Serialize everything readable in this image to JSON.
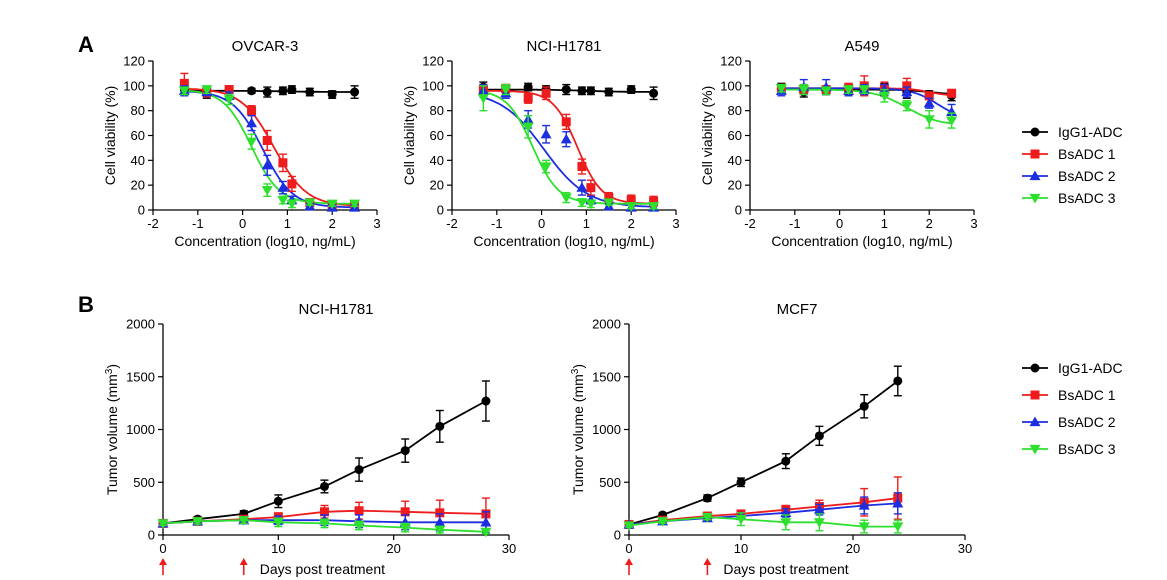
{
  "panels": [
    "A",
    "B"
  ],
  "colors": {
    "IgG1-ADC": "#000000",
    "BsADC 1": "#ee1c1c",
    "BsADC 2": "#1c2ee0",
    "BsADC 3": "#2ee02e",
    "arrow": "#ee1c1c"
  },
  "markers": {
    "IgG1-ADC": "circle",
    "BsADC 1": "square",
    "BsADC 2": "triangle-up",
    "BsADC 3": "triangle-down"
  },
  "legend_A": [
    "IgG1-ADC",
    "BsADC 1",
    "BsADC 2",
    "BsADC 3"
  ],
  "legend_B": [
    "IgG1-ADC",
    "BsADC 1",
    "BsADC 2",
    "BsADC 3"
  ],
  "b_xlabel": "Days post treatment",
  "chart_data": [
    {
      "type": "scatter",
      "title": "OVCAR-3",
      "xlabel": "Concentration (log10, ng/mL)",
      "ylabel": "Cell viability (%)",
      "xlim": [
        -2,
        3
      ],
      "ylim": [
        0,
        120
      ],
      "xticks": [
        -2,
        -1,
        0,
        1,
        2,
        3
      ],
      "yticks": [
        0,
        20,
        40,
        60,
        80,
        100,
        120
      ],
      "x": [
        -1.3,
        -0.8,
        -0.3,
        0.2,
        0.55,
        0.9,
        1.1,
        1.5,
        2,
        2.5
      ],
      "series": [
        {
          "name": "IgG1-ADC",
          "values": [
            97,
            94,
            97,
            96,
            95,
            96,
            97,
            95,
            93,
            95
          ],
          "errors": [
            4,
            4,
            2,
            2,
            4,
            3,
            3,
            3,
            3,
            5
          ]
        },
        {
          "name": "BsADC 1",
          "values": [
            102,
            95,
            97,
            80,
            56,
            38,
            21,
            6,
            4,
            4
          ],
          "errors": [
            8,
            4,
            3,
            4,
            8,
            7,
            6,
            3,
            3,
            3
          ]
        },
        {
          "name": "BsADC 2",
          "values": [
            96,
            95,
            92,
            70,
            36,
            18,
            8,
            3,
            2,
            2
          ],
          "errors": [
            4,
            3,
            3,
            6,
            8,
            5,
            3,
            2,
            2,
            2
          ]
        },
        {
          "name": "BsADC 3",
          "values": [
            96,
            97,
            89,
            55,
            16,
            8,
            5,
            6,
            5,
            5
          ],
          "errors": [
            3,
            3,
            4,
            6,
            5,
            3,
            3,
            2,
            2,
            2
          ]
        }
      ],
      "fits": [
        {
          "name": "IgG1-ADC",
          "top": 96,
          "bottom": 95,
          "ic50": 1.0,
          "hill": 1
        },
        {
          "name": "BsADC 1",
          "top": 98,
          "bottom": 3,
          "ic50": 0.7,
          "hill": 1.2
        },
        {
          "name": "BsADC 2",
          "top": 96,
          "bottom": 2,
          "ic50": 0.45,
          "hill": 1.3
        },
        {
          "name": "BsADC 3",
          "top": 97,
          "bottom": 5,
          "ic50": 0.2,
          "hill": 1.4
        }
      ]
    },
    {
      "type": "scatter",
      "title": "NCI-H1781",
      "xlabel": "Concentration (log10, ng/mL)",
      "ylabel": "Cell viability (%)",
      "xlim": [
        -2,
        3
      ],
      "ylim": [
        0,
        120
      ],
      "xticks": [
        -2,
        -1,
        0,
        1,
        2,
        3
      ],
      "yticks": [
        0,
        20,
        40,
        60,
        80,
        100,
        120
      ],
      "x": [
        -1.3,
        -0.8,
        -0.3,
        0.1,
        0.55,
        0.9,
        1.1,
        1.5,
        2,
        2.5
      ],
      "series": [
        {
          "name": "IgG1-ADC",
          "values": [
            99,
            96,
            99,
            97,
            97,
            96,
            96,
            95,
            97,
            94
          ],
          "errors": [
            4,
            3,
            3,
            3,
            4,
            3,
            3,
            3,
            3,
            5
          ]
        },
        {
          "name": "BsADC 1",
          "values": [
            97,
            98,
            90,
            94,
            71,
            35,
            18,
            10,
            8,
            7
          ],
          "errors": [
            4,
            3,
            4,
            5,
            6,
            6,
            6,
            4,
            4,
            4
          ]
        },
        {
          "name": "BsADC 2",
          "values": [
            96,
            94,
            73,
            61,
            57,
            18,
            8,
            3,
            2,
            2
          ],
          "errors": [
            5,
            4,
            7,
            7,
            6,
            6,
            3,
            2,
            2,
            2
          ]
        },
        {
          "name": "BsADC 3",
          "values": [
            90,
            97,
            67,
            35,
            10,
            6,
            5,
            6,
            3,
            3
          ],
          "errors": [
            10,
            4,
            9,
            5,
            4,
            3,
            3,
            2,
            2,
            2
          ]
        }
      ],
      "fits": [
        {
          "name": "IgG1-ADC",
          "top": 97,
          "bottom": 95,
          "ic50": 1.0,
          "hill": 1
        },
        {
          "name": "BsADC 1",
          "top": 96,
          "bottom": 5,
          "ic50": 0.8,
          "hill": 1.6
        },
        {
          "name": "BsADC 2",
          "top": 96,
          "bottom": 2,
          "ic50": 0.05,
          "hill": 0.9
        },
        {
          "name": "BsADC 3",
          "top": 97,
          "bottom": 5,
          "ic50": -0.2,
          "hill": 1.5
        }
      ]
    },
    {
      "type": "scatter",
      "title": "A549",
      "xlabel": "Concentration (log10, ng/mL)",
      "ylabel": "Cell viability (%)",
      "xlim": [
        -2,
        3
      ],
      "ylim": [
        0,
        120
      ],
      "xticks": [
        -2,
        -1,
        0,
        1,
        2,
        3
      ],
      "yticks": [
        0,
        20,
        40,
        60,
        80,
        100,
        120
      ],
      "x": [
        -1.3,
        -0.8,
        -0.3,
        0.2,
        0.55,
        1.0,
        1.5,
        2,
        2.5
      ],
      "series": [
        {
          "name": "IgG1-ADC",
          "values": [
            98,
            95,
            96,
            96,
            97,
            97,
            95,
            93,
            92
          ],
          "errors": [
            4,
            4,
            3,
            3,
            4,
            5,
            5,
            3,
            4
          ]
        },
        {
          "name": "BsADC 1",
          "values": [
            98,
            97,
            97,
            98,
            100,
            98,
            100,
            92,
            94
          ],
          "errors": [
            3,
            4,
            3,
            4,
            8,
            5,
            6,
            3,
            3
          ]
        },
        {
          "name": "BsADC 2",
          "values": [
            96,
            99,
            99,
            96,
            97,
            97,
            95,
            86,
            79
          ],
          "errors": [
            4,
            6,
            6,
            4,
            4,
            4,
            4,
            4,
            6
          ]
        },
        {
          "name": "BsADC 3",
          "values": [
            98,
            97,
            96,
            97,
            97,
            92,
            84,
            73,
            72
          ],
          "errors": [
            3,
            4,
            3,
            3,
            3,
            5,
            4,
            7,
            6
          ]
        }
      ],
      "fits": [
        {
          "name": "IgG1-ADC",
          "top": 97,
          "bottom": 93,
          "ic50": 2.0,
          "hill": 1.5
        },
        {
          "name": "BsADC 1",
          "top": 98,
          "bottom": 92,
          "ic50": 2.0,
          "hill": 2
        },
        {
          "name": "BsADC 2",
          "top": 98,
          "bottom": 72,
          "ic50": 2.2,
          "hill": 1.5
        },
        {
          "name": "BsADC 3",
          "top": 97,
          "bottom": 68,
          "ic50": 1.5,
          "hill": 1.2
        }
      ]
    },
    {
      "type": "line",
      "title": "NCI-H1781",
      "xlabel": "",
      "ylabel": "Tumor volume (mm³)",
      "xlim": [
        0,
        30
      ],
      "ylim": [
        0,
        2000
      ],
      "xticks": [
        0,
        10,
        20,
        30
      ],
      "yticks": [
        0,
        500,
        1000,
        1500,
        2000
      ],
      "dosing_days": [
        0,
        7
      ],
      "x": [
        0,
        3,
        7,
        10,
        14,
        17,
        21,
        24,
        28
      ],
      "series": [
        {
          "name": "IgG1-ADC",
          "values": [
            110,
            150,
            200,
            320,
            460,
            620,
            800,
            1030,
            1270
          ],
          "errors": [
            20,
            25,
            30,
            60,
            60,
            110,
            110,
            150,
            190
          ]
        },
        {
          "name": "BsADC 1",
          "values": [
            110,
            130,
            150,
            170,
            220,
            230,
            220,
            210,
            200
          ],
          "errors": [
            20,
            25,
            30,
            40,
            60,
            80,
            100,
            120,
            150
          ]
        },
        {
          "name": "BsADC 2",
          "values": [
            110,
            130,
            140,
            140,
            140,
            130,
            120,
            120,
            120
          ],
          "errors": [
            20,
            25,
            30,
            40,
            50,
            60,
            70,
            80,
            100
          ]
        },
        {
          "name": "BsADC 3",
          "values": [
            110,
            130,
            140,
            120,
            110,
            90,
            70,
            50,
            30
          ],
          "errors": [
            20,
            25,
            30,
            40,
            40,
            40,
            40,
            30,
            20
          ]
        }
      ]
    },
    {
      "type": "line",
      "title": "MCF7",
      "xlabel": "",
      "ylabel": "Tumor volume (mm³)",
      "xlim": [
        0,
        30
      ],
      "ylim": [
        0,
        2000
      ],
      "xticks": [
        0,
        10,
        20,
        30
      ],
      "yticks": [
        0,
        500,
        1000,
        1500,
        2000
      ],
      "dosing_days": [
        0,
        7
      ],
      "x": [
        0,
        3,
        7,
        10,
        14,
        17,
        21,
        24
      ],
      "series": [
        {
          "name": "IgG1-ADC",
          "values": [
            100,
            190,
            350,
            500,
            700,
            940,
            1220,
            1460
          ],
          "errors": [
            15,
            20,
            30,
            40,
            70,
            90,
            110,
            140
          ]
        },
        {
          "name": "BsADC 1",
          "values": [
            100,
            140,
            180,
            200,
            240,
            270,
            310,
            350
          ],
          "errors": [
            15,
            20,
            25,
            30,
            40,
            60,
            130,
            200
          ]
        },
        {
          "name": "BsADC 2",
          "values": [
            100,
            130,
            160,
            180,
            210,
            240,
            280,
            300
          ],
          "errors": [
            15,
            20,
            25,
            30,
            40,
            50,
            80,
            100
          ]
        },
        {
          "name": "BsADC 3",
          "values": [
            90,
            130,
            170,
            150,
            120,
            120,
            80,
            80
          ],
          "errors": [
            15,
            20,
            25,
            60,
            70,
            80,
            60,
            60
          ]
        }
      ]
    }
  ]
}
